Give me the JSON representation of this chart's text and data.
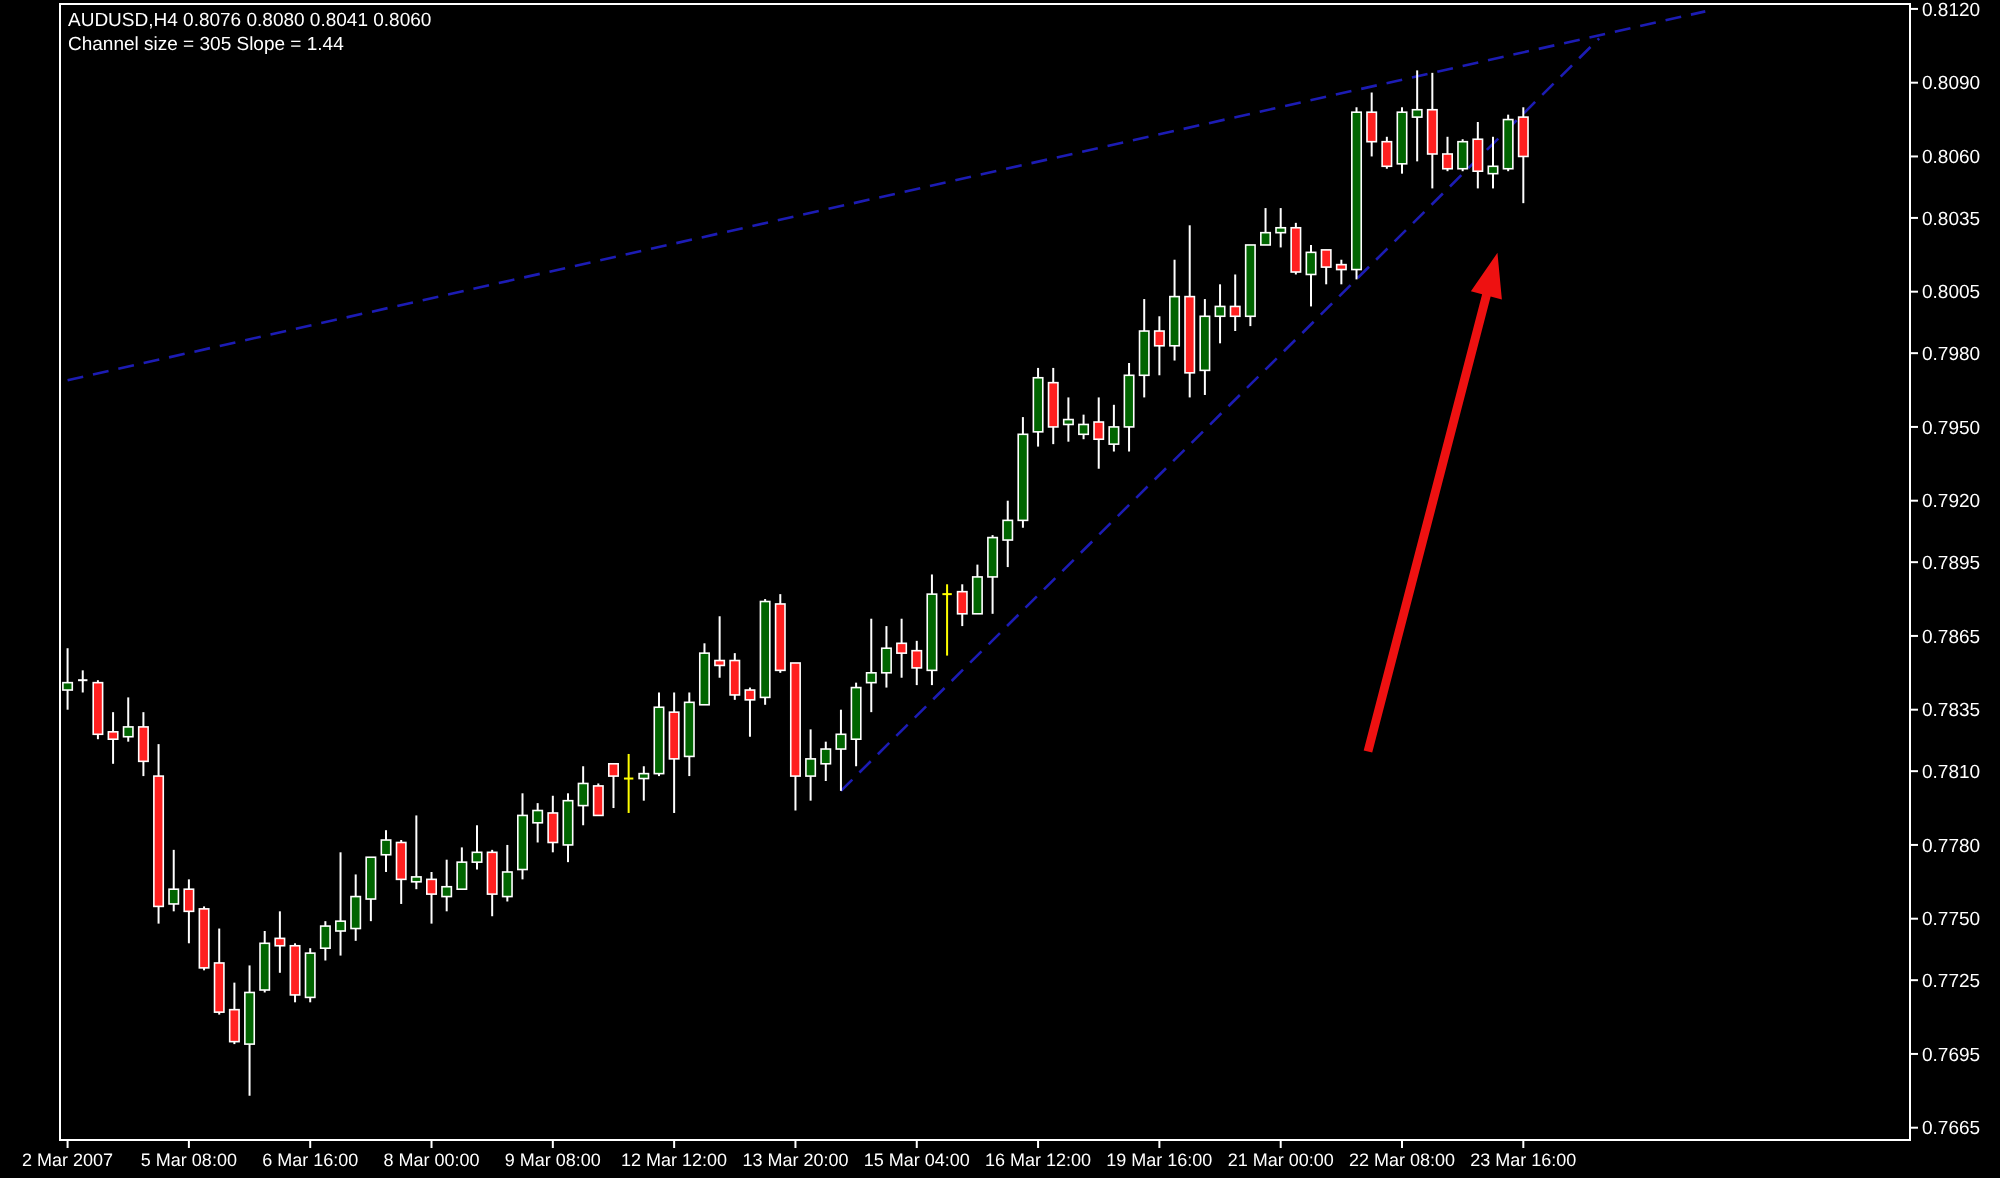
{
  "chart_data": {
    "type": "candlestick",
    "title": "AUDUSD,H4 0.8076 0.8080 0.8041 0.8060",
    "subtitle": "Channel size = 305 Slope = 1.44",
    "categories": [
      "2 Mar 2007",
      null,
      null,
      null,
      null,
      null,
      null,
      null,
      "5 Mar 08:00",
      null,
      null,
      null,
      null,
      null,
      null,
      null,
      "6 Mar 16:00",
      null,
      null,
      null,
      null,
      null,
      null,
      null,
      "8 Mar 00:00",
      null,
      null,
      null,
      null,
      null,
      null,
      null,
      "9 Mar 08:00",
      null,
      null,
      null,
      null,
      null,
      null,
      null,
      "12 Mar 12:00",
      null,
      null,
      null,
      null,
      null,
      null,
      null,
      "13 Mar 20:00",
      null,
      null,
      null,
      null,
      null,
      null,
      null,
      "15 Mar 04:00",
      null,
      null,
      null,
      null,
      null,
      null,
      null,
      "16 Mar 12:00",
      null,
      null,
      null,
      null,
      null,
      null,
      null,
      "19 Mar 16:00",
      null,
      null,
      null,
      null,
      null,
      null,
      null,
      "21 Mar 00:00",
      null,
      null,
      null,
      null,
      null,
      null,
      null,
      "22 Mar 08:00",
      null,
      null,
      null,
      null,
      null,
      null,
      null,
      "23 Mar 16:00",
      null,
      null,
      null,
      null,
      null,
      null,
      null,
      null,
      null,
      null,
      null,
      null,
      null,
      null,
      null,
      null,
      null,
      null,
      null,
      null,
      null,
      null,
      null,
      null,
      null
    ],
    "ohlc": [
      [
        0.7843,
        0.786,
        0.7835,
        0.7846
      ],
      [
        0.7847,
        0.7851,
        0.7842,
        0.7847
      ],
      [
        0.7846,
        0.7847,
        0.7823,
        0.7825
      ],
      [
        0.7826,
        0.7834,
        0.7813,
        0.7823
      ],
      [
        0.7824,
        0.784,
        0.7822,
        0.7828
      ],
      [
        0.7828,
        0.7834,
        0.7808,
        0.7814
      ],
      [
        0.7808,
        0.7821,
        0.7748,
        0.7755
      ],
      [
        0.7756,
        0.7778,
        0.7753,
        0.7762
      ],
      [
        0.7762,
        0.7766,
        0.774,
        0.7753
      ],
      [
        0.7754,
        0.7755,
        0.7729,
        0.773
      ],
      [
        0.7732,
        0.7746,
        0.7711,
        0.7712
      ],
      [
        0.7713,
        0.7724,
        0.7699,
        0.77
      ],
      [
        0.7699,
        0.7731,
        0.7678,
        0.772
      ],
      [
        0.7721,
        0.7745,
        0.772,
        0.774
      ],
      [
        0.7742,
        0.7753,
        0.7728,
        0.7739
      ],
      [
        0.7739,
        0.774,
        0.7716,
        0.7719
      ],
      [
        0.7718,
        0.7738,
        0.7716,
        0.7736
      ],
      [
        0.7738,
        0.7749,
        0.7733,
        0.7747
      ],
      [
        0.7745,
        0.7777,
        0.7735,
        0.7749
      ],
      [
        0.7746,
        0.7768,
        0.7741,
        0.7759
      ],
      [
        0.7758,
        0.7775,
        0.7749,
        0.7775
      ],
      [
        0.7776,
        0.7786,
        0.7769,
        0.7782
      ],
      [
        0.7781,
        0.7782,
        0.7756,
        0.7766
      ],
      [
        0.7765,
        0.7792,
        0.7762,
        0.7767
      ],
      [
        0.7766,
        0.7769,
        0.7748,
        0.776
      ],
      [
        0.7759,
        0.7774,
        0.7753,
        0.7763
      ],
      [
        0.7762,
        0.7779,
        0.7762,
        0.7773
      ],
      [
        0.7773,
        0.7788,
        0.777,
        0.7777
      ],
      [
        0.7777,
        0.7778,
        0.7751,
        0.776
      ],
      [
        0.7759,
        0.778,
        0.7757,
        0.7769
      ],
      [
        0.777,
        0.7801,
        0.7766,
        0.7792
      ],
      [
        0.7789,
        0.7797,
        0.7781,
        0.7794
      ],
      [
        0.7793,
        0.78,
        0.7777,
        0.7781
      ],
      [
        0.778,
        0.7801,
        0.7773,
        0.7798
      ],
      [
        0.7796,
        0.7812,
        0.7788,
        0.7805
      ],
      [
        0.7804,
        0.7805,
        0.7792,
        0.7792
      ],
      [
        0.7813,
        0.7813,
        0.7795,
        0.7808
      ],
      [
        0.7807,
        0.7817,
        0.7793,
        0.7807
      ],
      [
        0.7807,
        0.7812,
        0.7798,
        0.7809
      ],
      [
        0.7809,
        0.7842,
        0.7808,
        0.7836
      ],
      [
        0.7834,
        0.7842,
        0.7793,
        0.7815
      ],
      [
        0.7816,
        0.7842,
        0.7808,
        0.7838
      ],
      [
        0.7837,
        0.7862,
        0.7837,
        0.7858
      ],
      [
        0.7855,
        0.7873,
        0.7848,
        0.7853
      ],
      [
        0.7855,
        0.7858,
        0.7839,
        0.7841
      ],
      [
        0.7843,
        0.7844,
        0.7824,
        0.7839
      ],
      [
        0.784,
        0.788,
        0.7837,
        0.7879
      ],
      [
        0.7878,
        0.7882,
        0.785,
        0.7851
      ],
      [
        0.7854,
        0.7854,
        0.7794,
        0.7808
      ],
      [
        0.7808,
        0.7827,
        0.7798,
        0.7815
      ],
      [
        0.7813,
        0.7822,
        0.7806,
        0.7819
      ],
      [
        0.7819,
        0.7835,
        0.7802,
        0.7825
      ],
      [
        0.7823,
        0.7846,
        0.7812,
        0.7844
      ],
      [
        0.7846,
        0.7872,
        0.7834,
        0.785
      ],
      [
        0.785,
        0.7869,
        0.7844,
        0.786
      ],
      [
        0.7862,
        0.7872,
        0.7848,
        0.7858
      ],
      [
        0.7859,
        0.7863,
        0.7845,
        0.7852
      ],
      [
        0.7851,
        0.789,
        0.7845,
        0.7882
      ],
      [
        0.7882,
        0.7886,
        0.7857,
        0.7882
      ],
      [
        0.7883,
        0.7886,
        0.7869,
        0.7874
      ],
      [
        0.7874,
        0.7894,
        0.7874,
        0.7889
      ],
      [
        0.7889,
        0.7906,
        0.7874,
        0.7905
      ],
      [
        0.7904,
        0.792,
        0.7893,
        0.7912
      ],
      [
        0.7912,
        0.7954,
        0.7909,
        0.7947
      ],
      [
        0.7948,
        0.7974,
        0.7942,
        0.797
      ],
      [
        0.7968,
        0.7974,
        0.7943,
        0.795
      ],
      [
        0.7951,
        0.7962,
        0.7944,
        0.7953
      ],
      [
        0.7947,
        0.7955,
        0.7945,
        0.7951
      ],
      [
        0.7952,
        0.7962,
        0.7933,
        0.7945
      ],
      [
        0.7943,
        0.7959,
        0.794,
        0.795
      ],
      [
        0.795,
        0.7976,
        0.794,
        0.7971
      ],
      [
        0.7971,
        0.8002,
        0.7962,
        0.7989
      ],
      [
        0.7989,
        0.7995,
        0.7971,
        0.7983
      ],
      [
        0.7983,
        0.8018,
        0.7977,
        0.8003
      ],
      [
        0.8003,
        0.8032,
        0.7962,
        0.7972
      ],
      [
        0.7973,
        0.8002,
        0.7963,
        0.7995
      ],
      [
        0.7995,
        0.8008,
        0.7984,
        0.7999
      ],
      [
        0.7999,
        0.8012,
        0.7989,
        0.7995
      ],
      [
        0.7995,
        0.8024,
        0.7991,
        0.8024
      ],
      [
        0.8024,
        0.8039,
        0.8024,
        0.8029
      ],
      [
        0.8029,
        0.8039,
        0.8023,
        0.8031
      ],
      [
        0.8031,
        0.8033,
        0.8012,
        0.8013
      ],
      [
        0.8012,
        0.8024,
        0.7999,
        0.8021
      ],
      [
        0.8022,
        0.8022,
        0.8008,
        0.8015
      ],
      [
        0.8016,
        0.8018,
        0.8008,
        0.8014
      ],
      [
        0.8014,
        0.808,
        0.801,
        0.8078
      ],
      [
        0.8078,
        0.8086,
        0.806,
        0.8066
      ],
      [
        0.8066,
        0.8068,
        0.8055,
        0.8056
      ],
      [
        0.8057,
        0.808,
        0.8053,
        0.8078
      ],
      [
        0.8076,
        0.8095,
        0.8058,
        0.8079
      ],
      [
        0.8079,
        0.8094,
        0.8047,
        0.8061
      ],
      [
        0.8061,
        0.8068,
        0.8054,
        0.8055
      ],
      [
        0.8055,
        0.8067,
        0.8054,
        0.8066
      ],
      [
        0.8067,
        0.8074,
        0.8047,
        0.8054
      ],
      [
        0.8053,
        0.8068,
        0.8047,
        0.8056
      ],
      [
        0.8055,
        0.8077,
        0.8054,
        0.8075
      ],
      [
        0.8076,
        0.808,
        0.8041,
        0.806
      ],
      null,
      null,
      null,
      null,
      null,
      null,
      null,
      null,
      null,
      null,
      null,
      null,
      null,
      null,
      null,
      null,
      null,
      null,
      null,
      null,
      null,
      null,
      null,
      null,
      null
    ],
    "colors": [
      "#006400",
      "#ffffff",
      "#ff2020",
      "#ff2020",
      "#006400",
      "#ff2020",
      "#ff2020",
      "#006400",
      "#ff2020",
      "#ff2020",
      "#ff2020",
      "#ff2020",
      "#006400",
      "#006400",
      "#ff2020",
      "#ff2020",
      "#006400",
      "#006400",
      "#006400",
      "#006400",
      "#006400",
      "#006400",
      "#ff2020",
      "#006400",
      "#ff2020",
      "#006400",
      "#006400",
      "#006400",
      "#ff2020",
      "#006400",
      "#006400",
      "#006400",
      "#ff2020",
      "#006400",
      "#006400",
      "#ff2020",
      "#ff2020",
      "#ffff00",
      "#006400",
      "#006400",
      "#ff2020",
      "#006400",
      "#006400",
      "#ff2020",
      "#ff2020",
      "#ff2020",
      "#006400",
      "#ff2020",
      "#ff2020",
      "#006400",
      "#006400",
      "#006400",
      "#006400",
      "#006400",
      "#006400",
      "#ff2020",
      "#ff2020",
      "#006400",
      "#ffff00",
      "#ff2020",
      "#006400",
      "#006400",
      "#006400",
      "#006400",
      "#006400",
      "#ff2020",
      "#006400",
      "#006400",
      "#ff2020",
      "#006400",
      "#006400",
      "#006400",
      "#ff2020",
      "#006400",
      "#ff2020",
      "#006400",
      "#006400",
      "#ff2020",
      "#006400",
      "#006400",
      "#006400",
      "#ff2020",
      "#006400",
      "#ff2020",
      "#ff2020",
      "#006400",
      "#ff2020",
      "#ff2020",
      "#006400",
      "#006400",
      "#ff2020",
      "#ff2020",
      "#006400",
      "#ff2020",
      "#006400",
      "#006400",
      "#ff2020",
      null,
      null,
      null,
      null,
      null,
      null,
      null,
      null,
      null,
      null,
      null,
      null,
      null,
      null,
      null,
      null,
      null,
      null,
      null,
      null,
      null,
      null,
      null,
      null,
      null
    ],
    "series": [
      {
        "type": "line",
        "values": [
          0.7969,
          null,
          null,
          null,
          null,
          null,
          null,
          null,
          null,
          null,
          null,
          null,
          null,
          null,
          null,
          null,
          null,
          null,
          null,
          null,
          null,
          null,
          null,
          null,
          null,
          null,
          null,
          null,
          null,
          null,
          null,
          null,
          null,
          null,
          null,
          null,
          null,
          null,
          null,
          null,
          null,
          null,
          null,
          null,
          null,
          null,
          null,
          null,
          null,
          null,
          null,
          null,
          null,
          null,
          null,
          null,
          null,
          null,
          null,
          null,
          null,
          null,
          null,
          null,
          null,
          null,
          null,
          null,
          null,
          null,
          null,
          null,
          null,
          null,
          null,
          null,
          null,
          null,
          null,
          null,
          null,
          null,
          null,
          null,
          null,
          null,
          null,
          null,
          null,
          null,
          null,
          null,
          null,
          null,
          null,
          null,
          null,
          null,
          null,
          null,
          null,
          null,
          null,
          null,
          null,
          null,
          null,
          null,
          0.8119,
          null,
          null,
          null,
          null,
          null,
          null,
          null,
          null,
          null,
          null,
          null,
          null,
          null
        ],
        "color": "#1c1cb4",
        "line_style": "dashed"
      },
      {
        "type": "line",
        "values": [
          null,
          null,
          null,
          null,
          null,
          null,
          null,
          null,
          null,
          null,
          null,
          null,
          null,
          null,
          null,
          null,
          null,
          null,
          null,
          null,
          null,
          null,
          null,
          null,
          null,
          null,
          null,
          null,
          null,
          null,
          null,
          null,
          null,
          null,
          null,
          null,
          null,
          null,
          null,
          null,
          null,
          null,
          null,
          null,
          null,
          null,
          null,
          null,
          null,
          null,
          null,
          0.7802,
          null,
          null,
          null,
          null,
          null,
          null,
          null,
          null,
          null,
          null,
          null,
          null,
          null,
          null,
          null,
          null,
          null,
          null,
          null,
          null,
          null,
          null,
          null,
          null,
          null,
          null,
          null,
          null,
          null,
          null,
          null,
          null,
          null,
          null,
          null,
          null,
          null,
          null,
          null,
          null,
          null,
          null,
          null,
          null,
          null,
          null,
          null,
          null,
          null,
          0.8108,
          null,
          null,
          null,
          null,
          null,
          null,
          null,
          null,
          null,
          null,
          null,
          null,
          null,
          null,
          null,
          null,
          null,
          null,
          null,
          null
        ],
        "color": "#1c1cb4",
        "line_style": "dashed"
      }
    ],
    "ylim": [
      0.766,
      0.8122
    ],
    "yticks": [
      {
        "value": 0.812,
        "label": "0.8120"
      },
      {
        "value": 0.809,
        "label": "0.8090"
      },
      {
        "value": 0.806,
        "label": "0.8060"
      },
      {
        "value": 0.8035,
        "label": "0.8035"
      },
      {
        "value": 0.8005,
        "label": "0.8005"
      },
      {
        "value": 0.798,
        "label": "0.7980"
      },
      {
        "value": 0.795,
        "label": "0.7950"
      },
      {
        "value": 0.792,
        "label": "0.7920"
      },
      {
        "value": 0.7895,
        "label": "0.7895"
      },
      {
        "value": 0.7865,
        "label": "0.7865"
      },
      {
        "value": 0.7835,
        "label": "0.7835"
      },
      {
        "value": 0.781,
        "label": "0.7810"
      },
      {
        "value": 0.778,
        "label": "0.7780"
      },
      {
        "value": 0.775,
        "label": "0.7750"
      },
      {
        "value": 0.7725,
        "label": "0.7725"
      },
      {
        "value": 0.7695,
        "label": "0.7695"
      },
      {
        "value": 0.7665,
        "label": "0.7665"
      }
    ]
  }
}
